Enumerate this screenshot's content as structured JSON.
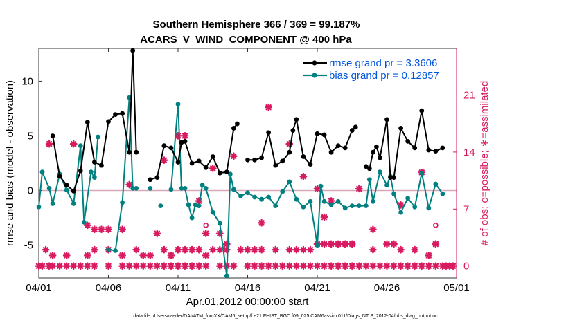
{
  "chart_data": {
    "type": "line",
    "title": "Southern Hemisphere 366 / 369 = 99.187%",
    "subtitle": "ACARS_V_WIND_COMPONENT @ 400 hPa",
    "xlabel": "Apr.01,2012 00:00:00 start",
    "ylabel": "rmse and bias (model - observation)",
    "y2label": "# of obs: o=possible; ∗=assimilated",
    "footer": "data file: /Users/raeder/DAI/ATM_forcXX/CAM6_setup/f.e21.FHIST_BGC.f09_025.CAM6assim.011/Diags_NTrS_2012-04/obs_diag_output.nc",
    "xlim": [
      "2012-04-01",
      "2012-05-01"
    ],
    "ylim": [
      -8,
      13
    ],
    "y2lim": [
      -1.4666,
      26.733
    ],
    "xticks": [
      {
        "value": "2012-04-01",
        "label": "04/01"
      },
      {
        "value": "2012-04-06",
        "label": "04/06"
      },
      {
        "value": "2012-04-11",
        "label": "04/11"
      },
      {
        "value": "2012-04-16",
        "label": "04/16"
      },
      {
        "value": "2012-04-21",
        "label": "04/21"
      },
      {
        "value": "2012-04-26",
        "label": "04/26"
      },
      {
        "value": "2012-05-01",
        "label": "05/01"
      }
    ],
    "yticks": [
      -5,
      0,
      5,
      10
    ],
    "y2ticks": [
      0,
      7,
      14,
      21
    ],
    "zero_line": true,
    "grid": false,
    "legend_position": "top-right",
    "colors": {
      "rmse": "#000000",
      "bias": "#008080",
      "obs": "#d81b60",
      "legend_text": "#0055dd",
      "zero_line": "#d8a8b8"
    },
    "rmse_label": "rmse grand pr = 3.3606",
    "bias_label": "bias grand pr = 0.12857",
    "rmse": [
      [
        2,
        5
      ],
      [
        2.5,
        1.3
      ],
      [
        3,
        0.5
      ],
      [
        3.5,
        -0.05
      ],
      [
        4,
        1.8
      ],
      [
        4.5,
        6.25
      ],
      [
        5,
        2.6
      ],
      [
        5.5,
        2.3
      ],
      [
        6,
        6.3
      ],
      [
        6.5,
        6.95
      ],
      [
        7,
        7.05
      ],
      [
        7.5,
        3.5
      ],
      [
        7.75,
        12.8
      ],
      [
        8,
        3.5
      ],
      [
        9,
        1.0
      ],
      [
        9.5,
        1.2
      ],
      [
        10,
        4.1
      ],
      [
        10.5,
        3.9
      ],
      [
        11,
        2.6
      ],
      [
        11.25,
        4.4
      ],
      [
        11.5,
        4.5
      ],
      [
        12,
        2.5
      ],
      [
        12.5,
        2.7
      ],
      [
        13,
        2.1
      ],
      [
        13.5,
        3.1
      ],
      [
        14,
        1.6
      ],
      [
        14.5,
        1.7
      ],
      [
        15,
        5.7
      ],
      [
        15.25,
        6.1
      ],
      [
        16,
        2.8
      ],
      [
        16.5,
        2.8
      ],
      [
        17,
        3.0
      ],
      [
        17.5,
        5.3
      ],
      [
        18,
        2.3
      ],
      [
        18.5,
        2.7
      ],
      [
        19,
        3.5
      ],
      [
        19.25,
        5.5
      ],
      [
        19.5,
        6.5
      ],
      [
        20,
        3.1
      ],
      [
        20.5,
        2.4
      ],
      [
        21,
        5.2
      ],
      [
        21.5,
        5.1
      ],
      [
        22,
        3.5
      ],
      [
        22.5,
        4.1
      ],
      [
        23,
        3.9
      ],
      [
        23.5,
        5.5
      ],
      [
        23.75,
        5.8
      ],
      [
        24.5,
        2.2
      ],
      [
        24.75,
        2.0
      ],
      [
        25,
        3.5
      ],
      [
        25.25,
        4.0
      ],
      [
        25.5,
        3.0
      ],
      [
        26,
        6.5
      ],
      [
        26.25,
        1.2
      ],
      [
        26.5,
        1.2
      ],
      [
        27,
        5.7
      ],
      [
        27.5,
        4.5
      ],
      [
        28,
        3.9
      ],
      [
        28.5,
        7.3
      ],
      [
        29,
        3.7
      ],
      [
        29.5,
        3.6
      ],
      [
        30,
        3.9
      ]
    ],
    "bias": [
      [
        1,
        -1.5
      ],
      [
        1.25,
        1.7
      ],
      [
        1.75,
        0.2
      ],
      [
        2,
        -1.2
      ],
      [
        2.5,
        1.5
      ],
      [
        3,
        0.05
      ],
      [
        3.5,
        -1.2
      ],
      [
        4,
        4.1
      ],
      [
        4.25,
        -2.9
      ],
      [
        4.75,
        1.7
      ],
      [
        5,
        1.2
      ],
      [
        5.25,
        4.9
      ],
      [
        6,
        -5.4
      ],
      [
        6.5,
        -5.5
      ],
      [
        7,
        -1.1
      ],
      [
        7.5,
        8.5
      ],
      [
        7.75,
        0.2
      ],
      [
        8,
        0.2
      ],
      [
        9,
        0.2
      ],
      [
        9.75,
        -1.4
      ],
      [
        10.5,
        0.1
      ],
      [
        11,
        7.9
      ],
      [
        11.25,
        0.2
      ],
      [
        11.5,
        0.2
      ],
      [
        11.75,
        -1.3
      ],
      [
        12,
        -2.5
      ],
      [
        12.25,
        -1.3
      ],
      [
        12.5,
        -1.4
      ],
      [
        12.75,
        0.5
      ],
      [
        13,
        0.2
      ],
      [
        13.5,
        -2.0
      ],
      [
        14,
        -3.0
      ],
      [
        14.5,
        -7.8
      ],
      [
        14.75,
        1.5
      ],
      [
        15,
        0.1
      ],
      [
        15.5,
        -0.5
      ],
      [
        16,
        -0.2
      ],
      [
        16.5,
        -0.6
      ],
      [
        17,
        -0.8
      ],
      [
        17.5,
        -0.6
      ],
      [
        18,
        -1.4
      ],
      [
        18.5,
        -0.1
      ],
      [
        19,
        0.8
      ],
      [
        19.5,
        -0.8
      ],
      [
        20,
        -1.5
      ],
      [
        20.5,
        -1.0
      ],
      [
        21,
        -5.0
      ],
      [
        21.25,
        0.4
      ],
      [
        21.5,
        -1.0
      ],
      [
        22,
        -1.3
      ],
      [
        22.5,
        -1.0
      ],
      [
        23,
        -1.6
      ],
      [
        23.5,
        -1.4
      ],
      [
        24,
        -1.4
      ],
      [
        24.5,
        -1.4
      ],
      [
        24.75,
        1.0
      ],
      [
        25,
        -1.0
      ],
      [
        25.5,
        1.7
      ],
      [
        26,
        0.5
      ],
      [
        26.25,
        1.3
      ],
      [
        26.5,
        -0.3
      ],
      [
        27,
        -2.0
      ],
      [
        27.5,
        -0.7
      ],
      [
        28,
        -1.5
      ],
      [
        28.5,
        1.6
      ],
      [
        29,
        -1.6
      ],
      [
        29.5,
        0.6
      ],
      [
        30,
        -0.3
      ]
    ],
    "obs_possible": [
      [
        13,
        5.0
      ],
      [
        29.5,
        5.0
      ]
    ],
    "obs_assimilated": [
      [
        1,
        0
      ],
      [
        1.25,
        0
      ],
      [
        1.75,
        0
      ],
      [
        2,
        0
      ],
      [
        2.5,
        0
      ],
      [
        3,
        0
      ],
      [
        3.5,
        0
      ],
      [
        4,
        0
      ],
      [
        4.5,
        0
      ],
      [
        5,
        0
      ],
      [
        6,
        0
      ],
      [
        7,
        0
      ],
      [
        7.5,
        0
      ],
      [
        8,
        0
      ],
      [
        8.5,
        0
      ],
      [
        9,
        0
      ],
      [
        9.5,
        0
      ],
      [
        10,
        0
      ],
      [
        10.5,
        0
      ],
      [
        11,
        0
      ],
      [
        11.5,
        0
      ],
      [
        12,
        0
      ],
      [
        12.5,
        0
      ],
      [
        13,
        0
      ],
      [
        14,
        0
      ],
      [
        14.5,
        0
      ],
      [
        15,
        0
      ],
      [
        16,
        0
      ],
      [
        16.5,
        0
      ],
      [
        17,
        0
      ],
      [
        17.5,
        0
      ],
      [
        18,
        0
      ],
      [
        18.5,
        0
      ],
      [
        19,
        0
      ],
      [
        19.5,
        0
      ],
      [
        20,
        0
      ],
      [
        20.5,
        0
      ],
      [
        21,
        0
      ],
      [
        21.5,
        0
      ],
      [
        22,
        0
      ],
      [
        22.5,
        0
      ],
      [
        23,
        0
      ],
      [
        23.5,
        0
      ],
      [
        24,
        0
      ],
      [
        24.5,
        0
      ],
      [
        25,
        0
      ],
      [
        25.5,
        0
      ],
      [
        26,
        0
      ],
      [
        26.5,
        0
      ],
      [
        27,
        0
      ],
      [
        27.5,
        0
      ],
      [
        28,
        0
      ],
      [
        28.5,
        0
      ],
      [
        29,
        0
      ],
      [
        29.5,
        0
      ],
      [
        30,
        0
      ],
      [
        30.25,
        0
      ],
      [
        30.5,
        0
      ],
      [
        30.75,
        0
      ],
      [
        1.5,
        2
      ],
      [
        2,
        1.3
      ],
      [
        3,
        1.3
      ],
      [
        4.5,
        1.3
      ],
      [
        5,
        2
      ],
      [
        6,
        2
      ],
      [
        7,
        1.3
      ],
      [
        8,
        2
      ],
      [
        8.5,
        1.3
      ],
      [
        9,
        1.3
      ],
      [
        10,
        2
      ],
      [
        10.5,
        1.3
      ],
      [
        11,
        2
      ],
      [
        11.5,
        2
      ],
      [
        12,
        2
      ],
      [
        12.5,
        2
      ],
      [
        13,
        1.3
      ],
      [
        13.5,
        2
      ],
      [
        14,
        2
      ],
      [
        14.5,
        2
      ],
      [
        15.5,
        2
      ],
      [
        16,
        2
      ],
      [
        16.5,
        2
      ],
      [
        17,
        2
      ],
      [
        18,
        2
      ],
      [
        19,
        2
      ],
      [
        19.5,
        2
      ],
      [
        20,
        2
      ],
      [
        20.5,
        2
      ],
      [
        21,
        2.7
      ],
      [
        21.5,
        2.7
      ],
      [
        22,
        2.7
      ],
      [
        22.5,
        2.7
      ],
      [
        23,
        2.7
      ],
      [
        23.5,
        2.7
      ],
      [
        25,
        2
      ],
      [
        26,
        2.7
      ],
      [
        26.5,
        2.7
      ],
      [
        27,
        2
      ],
      [
        28,
        2
      ],
      [
        29.5,
        2.7
      ],
      [
        29,
        1.3
      ],
      [
        1.75,
        15
      ],
      [
        3.5,
        15
      ],
      [
        4.5,
        5
      ],
      [
        5,
        4.5
      ],
      [
        5.5,
        4.5
      ],
      [
        6,
        4.5
      ],
      [
        7,
        4.5
      ],
      [
        7.5,
        10
      ],
      [
        9.5,
        4
      ],
      [
        10,
        13
      ],
      [
        11,
        16
      ],
      [
        11.5,
        16
      ],
      [
        12.5,
        8
      ],
      [
        13,
        4
      ],
      [
        13.5,
        12
      ],
      [
        14,
        4
      ],
      [
        14.5,
        2.7
      ],
      [
        15,
        13.5
      ],
      [
        17,
        5.3
      ],
      [
        17.5,
        19.5
      ],
      [
        19,
        15
      ],
      [
        20,
        11
      ],
      [
        21,
        9.5
      ],
      [
        21.5,
        6
      ],
      [
        22,
        8
      ],
      [
        24,
        9.5
      ],
      [
        25,
        4.5
      ],
      [
        27,
        7.5
      ],
      [
        28.5,
        11.5
      ],
      [
        29.5,
        2.7
      ]
    ]
  }
}
